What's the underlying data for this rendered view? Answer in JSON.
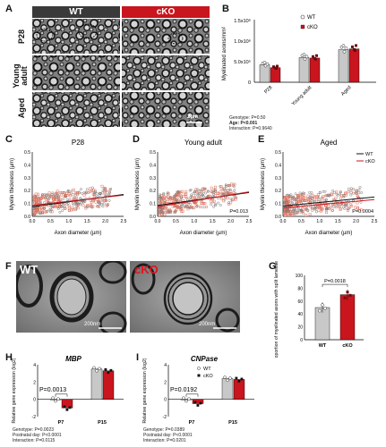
{
  "panels": {
    "A": {
      "label": "A",
      "cols": [
        "WT",
        "cKO"
      ],
      "rows": [
        "P28",
        "Young adult",
        "Aged"
      ],
      "scale": "2µm",
      "wt_color": "#3a3a3a",
      "cko_color": "#c9151e"
    },
    "B": {
      "label": "B",
      "ylabel": "Myelinated axons/mm²",
      "yticks": [
        "0",
        "5.0x10⁵",
        "1.0x10⁶",
        "1.5x10⁶"
      ],
      "legend": [
        "WT",
        "cKO"
      ],
      "stats": [
        "Genotype: P=0.50",
        "Age: P<0.001",
        "Interaction: P=0.9640"
      ]
    },
    "C": {
      "label": "C",
      "title": "P28",
      "xlabel": "Axon diameter (µm)",
      "ylabel": "Myelin thickness (µm)"
    },
    "D": {
      "label": "D",
      "title": "Young adult",
      "xlabel": "Axon diameter (µm)",
      "ylabel": "Myelin thickness (µm)",
      "p": "P=0.013"
    },
    "E": {
      "label": "E",
      "title": "Aged",
      "xlabel": "Axon diameter (µm)",
      "ylabel": "Myelin thickness (µm)",
      "p": "P=0.0004",
      "legend": [
        "WT",
        "cKO"
      ]
    },
    "F": {
      "label": "F",
      "left": "WT",
      "right": "cKO",
      "scale": "200nm"
    },
    "G": {
      "label": "G",
      "ylabel": "Proportion of myelinated axons with split lamellae (%)",
      "p": "P=0.0018",
      "yticks": [
        "0",
        "20",
        "40",
        "60",
        "80",
        "100"
      ],
      "cats": [
        "WT",
        "cKO"
      ]
    },
    "H": {
      "label": "H",
      "title": "MBP",
      "ylabel": "Relative gene expression (log2)",
      "p": "P=0.0013",
      "yticks": [
        "-2",
        "0",
        "2",
        "4"
      ],
      "cats": [
        "P7",
        "P15"
      ],
      "stats": [
        "Genotype: P=0.0023",
        "Postnatal day: P<0.0001",
        "Interaction: P=0.0115"
      ]
    },
    "I": {
      "label": "I",
      "title": "CNPase",
      "ylabel": "Relative gene expression (log2)",
      "p": "P=0.0192",
      "yticks": [
        "-2",
        "0",
        "2",
        "4"
      ],
      "cats": [
        "P7",
        "P15"
      ],
      "legend": [
        "WT",
        "cKO"
      ],
      "stats": [
        "Genotype: P=0.0389",
        "Postnatal day: P<0.0001",
        "Interaction: P=0.0201"
      ]
    }
  },
  "chart_data": [
    {
      "type": "bar",
      "panel": "B",
      "categories": [
        "P28",
        "Young adult",
        "Aged"
      ],
      "series": [
        {
          "name": "WT",
          "values": [
            420000,
            590000,
            780000
          ]
        },
        {
          "name": "cKO",
          "values": [
            350000,
            580000,
            800000
          ]
        }
      ],
      "ylim": [
        0,
        1500000
      ]
    },
    {
      "type": "scatter",
      "panel": "C",
      "xlim": [
        0,
        2.5
      ],
      "ylim": [
        0,
        0.5
      ],
      "xticks": [
        "0.0",
        "0.5",
        "1.0",
        "1.5",
        "2.0",
        "2.5"
      ],
      "yticks": [
        "0.0",
        "0.1",
        "0.2",
        "0.3",
        "0.4",
        "0.5"
      ],
      "series": [
        {
          "name": "WT",
          "fit": [
            [
              0,
              0.075
            ],
            [
              2.5,
              0.17
            ]
          ]
        },
        {
          "name": "cKO",
          "fit": [
            [
              0,
              0.085
            ],
            [
              2.5,
              0.165
            ]
          ]
        }
      ]
    },
    {
      "type": "scatter",
      "panel": "D",
      "xlim": [
        0,
        2.5
      ],
      "ylim": [
        0,
        0.5
      ],
      "xticks": [
        "0.0",
        "0.5",
        "1.0",
        "1.5",
        "2.0",
        "2.5"
      ],
      "yticks": [
        "0.0",
        "0.1",
        "0.2",
        "0.3",
        "0.4",
        "0.5"
      ],
      "series": [
        {
          "name": "WT",
          "fit": [
            [
              0,
              0.085
            ],
            [
              2.5,
              0.185
            ]
          ]
        },
        {
          "name": "cKO",
          "fit": [
            [
              0,
              0.075
            ],
            [
              2.5,
              0.19
            ]
          ]
        }
      ]
    },
    {
      "type": "scatter",
      "panel": "E",
      "xlim": [
        0,
        2.5
      ],
      "ylim": [
        0,
        0.5
      ],
      "xticks": [
        "0.0",
        "0.5",
        "1.0",
        "1.5",
        "2.0",
        "2.5"
      ],
      "yticks": [
        "0.0",
        "0.1",
        "0.2",
        "0.3",
        "0.4",
        "0.5"
      ],
      "series": [
        {
          "name": "WT",
          "fit": [
            [
              0,
              0.08
            ],
            [
              2.5,
              0.15
            ]
          ]
        },
        {
          "name": "cKO",
          "fit": [
            [
              0,
              0.065
            ],
            [
              2.5,
              0.13
            ]
          ]
        }
      ]
    },
    {
      "type": "bar",
      "panel": "G",
      "categories": [
        "WT",
        "cKO"
      ],
      "values": [
        50,
        70
      ],
      "ylim": [
        0,
        100
      ]
    },
    {
      "type": "bar",
      "panel": "H",
      "categories": [
        "P7",
        "P15"
      ],
      "series": [
        {
          "name": "WT",
          "values": [
            0,
            3.5
          ]
        },
        {
          "name": "cKO",
          "values": [
            -1,
            3.3
          ]
        }
      ],
      "ylim": [
        -2,
        4
      ]
    },
    {
      "type": "bar",
      "panel": "I",
      "categories": [
        "P7",
        "P15"
      ],
      "series": [
        {
          "name": "WT",
          "values": [
            0,
            2.4
          ]
        },
        {
          "name": "cKO",
          "values": [
            -0.5,
            2.3
          ]
        }
      ],
      "ylim": [
        -2,
        4
      ]
    }
  ]
}
